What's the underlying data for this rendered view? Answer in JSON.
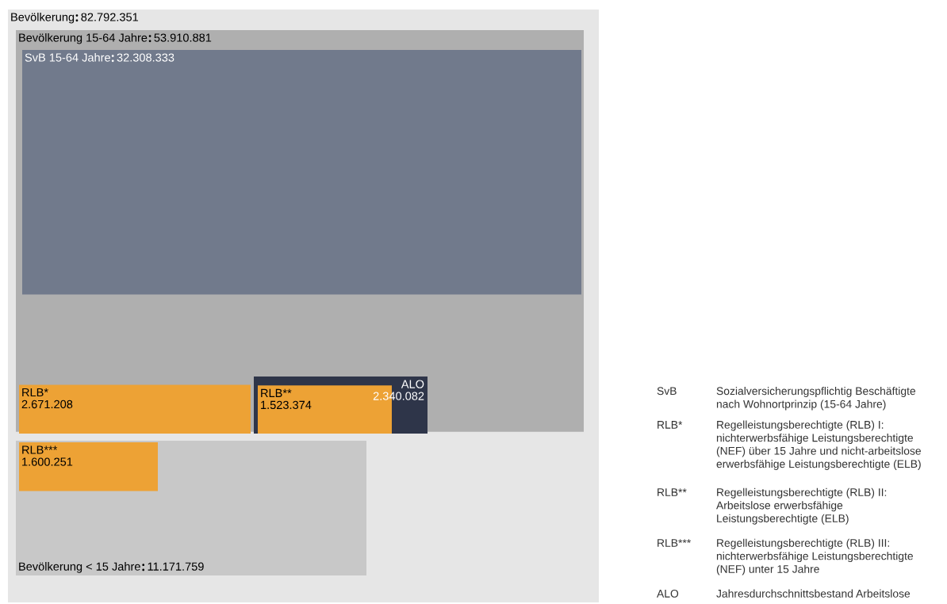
{
  "chart_data": {
    "type": "other",
    "categories": [
      "Bevölkerung",
      "Bevölkerung 15-64 Jahre",
      "SvB 15-64 Jahre",
      "RLB*",
      "ALO",
      "RLB**",
      "Bevölkerung < 15 Jahre",
      "RLB***"
    ],
    "value_labels": [
      "82.792.351",
      "53.910.881",
      "32.308.333",
      "2.671.208",
      "2.340.082",
      "1.523.374",
      "11.171.759",
      "1.600.251"
    ],
    "values": [
      82792351,
      53910881,
      32308333,
      2671208,
      2340082,
      1523374,
      11171759,
      1600251
    ],
    "colors": [
      "#e6e6e6",
      "#afafaf",
      "#717a8c",
      "#eda235",
      "#2e3549",
      "#eda235",
      "#c8c8c8",
      "#eda235"
    ],
    "annotations": [
      "SvB Sozialversicherungspflichtig Beschäftigte\nnach Wohnortprinzip (15-64 Jahre)",
      "RLB* Regelleistungsberechtigte (RLB) I:\nnichterwerbsfähige Leistungsberechtigte\n(NEF) über 15 Jahre und nicht-arbeitslose\nerwerbsfähige Leistungsberechtigte (ELB)",
      "RLB** Regelleistungsberechtigte (RLB) II:\nArbeitslose erwerbsfähige\nLeistungsberechtigte (ELB)",
      "RLB*** Regelleistungsberechtigte (RLB) III:\nnichterwerbsfähige Leistungsberechtigte\n(NEF) unter 15 Jahre",
      "ALO Jahresdurchschnittsbestand Arbeitslose"
    ]
  }
}
